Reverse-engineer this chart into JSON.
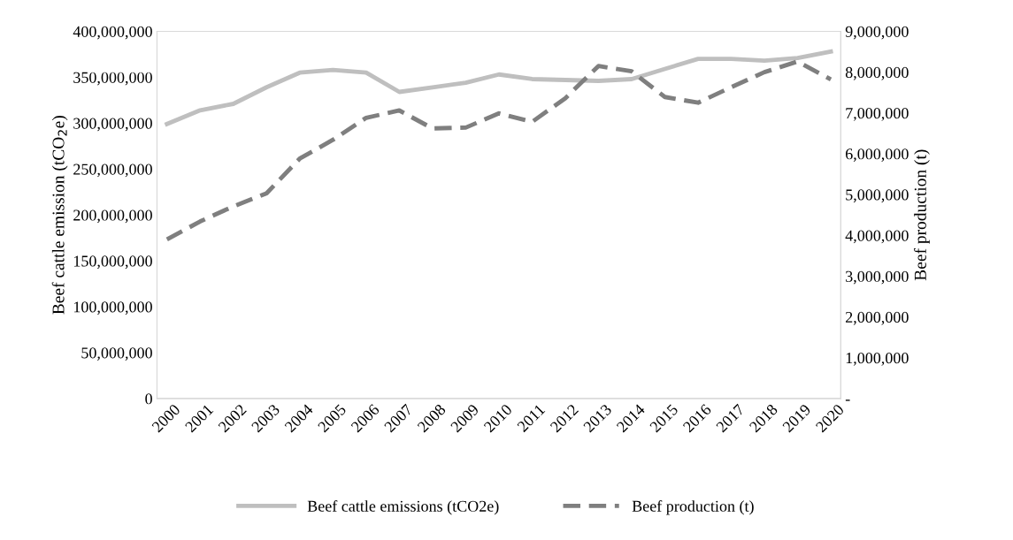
{
  "chart_data": {
    "type": "line",
    "categories": [
      "2000",
      "2001",
      "2002",
      "2003",
      "2004",
      "2005",
      "2006",
      "2007",
      "2008",
      "2009",
      "2010",
      "2011",
      "2012",
      "2013",
      "2014",
      "2015",
      "2016",
      "2017",
      "2018",
      "2019",
      "2020"
    ],
    "series": [
      {
        "name": "Beef cattle emissions (tCO2e)",
        "color": "#bfbfbf",
        "line_style": "solid",
        "values": [
          299000000,
          314000000,
          321000000,
          339000000,
          355000000,
          358000000,
          355000000,
          334000000,
          339000000,
          344000000,
          353000000,
          348000000,
          347000000,
          346000000,
          348000000,
          359000000,
          370000000,
          370000000,
          368000000,
          371000000,
          378000000
        ]
      },
      {
        "name": "Beef production (t)",
        "color": "#7f7f7f",
        "line_style": "dashed",
        "axis": "y2",
        "values": [
          3900000,
          4340000,
          4710000,
          5030000,
          5880000,
          6340000,
          6880000,
          7060000,
          6620000,
          6640000,
          6990000,
          6780000,
          7360000,
          8150000,
          8020000,
          7390000,
          7250000,
          7630000,
          8000000,
          8260000,
          7820000
        ]
      }
    ],
    "ylabel": "Beef cattle emission (tCO$_{2}$e)",
    "y2label": "Beef production (t)",
    "ylim": [
      0,
      400000000
    ],
    "yticks": [
      {
        "value": 0,
        "label": "0"
      },
      {
        "value": 50000000,
        "label": "50,000,000"
      },
      {
        "value": 100000000,
        "label": "100,000,000"
      },
      {
        "value": 150000000,
        "label": "150,000,000"
      },
      {
        "value": 200000000,
        "label": "200,000,000"
      },
      {
        "value": 250000000,
        "label": "250,000,000"
      },
      {
        "value": 300000000,
        "label": "300,000,000"
      },
      {
        "value": 350000000,
        "label": "350,000,000"
      },
      {
        "value": 400000000,
        "label": "400,000,000"
      }
    ],
    "y2lim": [
      0,
      9000000
    ],
    "y2ticks": [
      {
        "value": 0,
        "label": "-"
      },
      {
        "value": 1000000,
        "label": "1,000,000"
      },
      {
        "value": 2000000,
        "label": "2,000,000"
      },
      {
        "value": 3000000,
        "label": "3,000,000"
      },
      {
        "value": 4000000,
        "label": "4,000,000"
      },
      {
        "value": 5000000,
        "label": "5,000,000"
      },
      {
        "value": 6000000,
        "label": "6,000,000"
      },
      {
        "value": 7000000,
        "label": "7,000,000"
      },
      {
        "value": 8000000,
        "label": "8,000,000"
      },
      {
        "value": 9000000,
        "label": "9,000,000"
      }
    ],
    "grid": false,
    "legend": "bottom"
  }
}
